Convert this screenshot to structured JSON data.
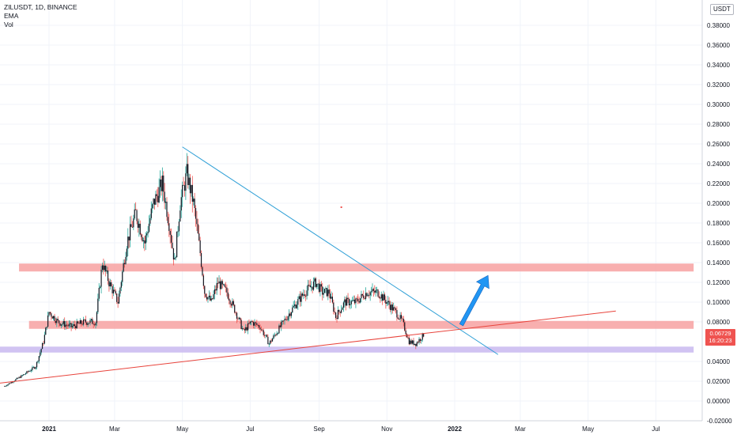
{
  "header": {
    "symbol_line": "ZILUSDT, 1D, BINANCE",
    "indicator_ema": "EMA",
    "indicator_vol": "Vol"
  },
  "price_axis": {
    "unit": "USDT",
    "current_price": "0.06729",
    "countdown": "16:20:23"
  },
  "colors": {
    "up_candle": "#26a69a",
    "down_candle": "#ef5350",
    "candle_body": "#131722",
    "resistance_zone": "#f7a1a1",
    "support_zone": "#c9b8f0",
    "downtrend_line": "#2e9fd6",
    "uptrend_line": "#e8433b",
    "arrow": "#2196f3"
  },
  "chart_data": {
    "type": "candlestick",
    "title": "ZILUSDT, 1D, BINANCE",
    "xlabel": "",
    "ylabel": "",
    "ylim": [
      -0.02,
      0.4
    ],
    "yticks": [
      "0.38000",
      "0.36000",
      "0.34000",
      "0.32000",
      "0.30000",
      "0.28000",
      "0.26000",
      "0.24000",
      "0.22000",
      "0.20000",
      "0.18000",
      "0.16000",
      "0.14000",
      "0.12000",
      "0.10000",
      "0.08000",
      "0.04000",
      "0.02000",
      "0.00000",
      "-0.02000"
    ],
    "ytick_values": [
      0.38,
      0.36,
      0.34,
      0.32,
      0.3,
      0.28,
      0.26,
      0.24,
      0.22,
      0.2,
      0.18,
      0.16,
      0.14,
      0.12,
      0.1,
      0.08,
      0.04,
      0.02,
      0.0,
      -0.02
    ],
    "x_tick_labels": [
      "2021",
      "Mar",
      "May",
      "Jul",
      "Sep",
      "Nov",
      "2022",
      "Mar",
      "May",
      "Jul"
    ],
    "x_tick_days": [
      0,
      59,
      120,
      181,
      243,
      304,
      365,
      424,
      485,
      546
    ],
    "bold_x_ticks": [
      "2021",
      "2022"
    ],
    "price_path": [
      {
        "day": -40,
        "price": 0.015
      },
      {
        "day": -25,
        "price": 0.025
      },
      {
        "day": -12,
        "price": 0.035
      },
      {
        "day": -5,
        "price": 0.06
      },
      {
        "day": 0,
        "price": 0.09
      },
      {
        "day": 8,
        "price": 0.08
      },
      {
        "day": 20,
        "price": 0.075
      },
      {
        "day": 32,
        "price": 0.08
      },
      {
        "day": 42,
        "price": 0.08
      },
      {
        "day": 48,
        "price": 0.14
      },
      {
        "day": 54,
        "price": 0.12
      },
      {
        "day": 62,
        "price": 0.1
      },
      {
        "day": 70,
        "price": 0.16
      },
      {
        "day": 78,
        "price": 0.19
      },
      {
        "day": 86,
        "price": 0.16
      },
      {
        "day": 94,
        "price": 0.2
      },
      {
        "day": 102,
        "price": 0.22
      },
      {
        "day": 108,
        "price": 0.18
      },
      {
        "day": 113,
        "price": 0.14
      },
      {
        "day": 118,
        "price": 0.2
      },
      {
        "day": 124,
        "price": 0.23
      },
      {
        "day": 130,
        "price": 0.2
      },
      {
        "day": 136,
        "price": 0.15
      },
      {
        "day": 140,
        "price": 0.11
      },
      {
        "day": 146,
        "price": 0.1
      },
      {
        "day": 152,
        "price": 0.12
      },
      {
        "day": 160,
        "price": 0.11
      },
      {
        "day": 168,
        "price": 0.09
      },
      {
        "day": 175,
        "price": 0.07
      },
      {
        "day": 182,
        "price": 0.08
      },
      {
        "day": 190,
        "price": 0.075
      },
      {
        "day": 198,
        "price": 0.058
      },
      {
        "day": 208,
        "price": 0.075
      },
      {
        "day": 220,
        "price": 0.095
      },
      {
        "day": 230,
        "price": 0.11
      },
      {
        "day": 240,
        "price": 0.12
      },
      {
        "day": 246,
        "price": 0.11
      },
      {
        "day": 252,
        "price": 0.11
      },
      {
        "day": 258,
        "price": 0.085
      },
      {
        "day": 266,
        "price": 0.1
      },
      {
        "day": 276,
        "price": 0.1
      },
      {
        "day": 286,
        "price": 0.11
      },
      {
        "day": 296,
        "price": 0.11
      },
      {
        "day": 304,
        "price": 0.1
      },
      {
        "day": 312,
        "price": 0.09
      },
      {
        "day": 318,
        "price": 0.08
      },
      {
        "day": 324,
        "price": 0.06
      },
      {
        "day": 330,
        "price": 0.058
      },
      {
        "day": 337,
        "price": 0.067
      }
    ],
    "zones": [
      {
        "name": "resistance",
        "price_low": 0.131,
        "price_high": 0.139,
        "day_start": -27,
        "day_end": 580
      },
      {
        "name": "mid-support",
        "price_low": 0.073,
        "price_high": 0.081,
        "day_start": -18,
        "day_end": 580
      },
      {
        "name": "support",
        "price_low": 0.049,
        "price_high": 0.055,
        "day_start": -45,
        "day_end": 580
      }
    ],
    "trendlines": [
      {
        "name": "downtrend",
        "from": {
          "day": 120,
          "price": 0.257
        },
        "to": {
          "day": 404,
          "price": 0.047
        }
      },
      {
        "name": "uptrend",
        "from": {
          "day": -45,
          "price": 0.018
        },
        "to": {
          "day": 510,
          "price": 0.091
        }
      }
    ],
    "arrow": {
      "from": {
        "day": 371,
        "price": 0.077
      },
      "to": {
        "day": 395,
        "price": 0.127
      }
    },
    "marker": {
      "day": 263,
      "price": 0.196
    }
  }
}
